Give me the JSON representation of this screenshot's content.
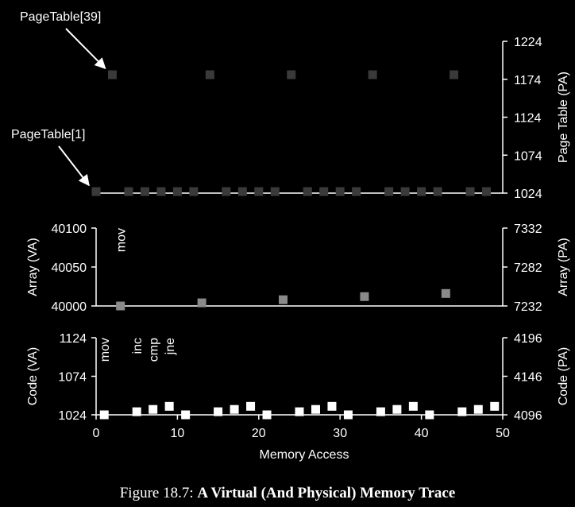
{
  "chart_data": {
    "type": "scatter",
    "xlabel": "Memory Access",
    "xlim": [
      0,
      50
    ],
    "xticks": [
      0,
      10,
      20,
      30,
      40,
      50
    ],
    "panels": [
      {
        "id": "page-table",
        "right_label": "Page Table (PA)",
        "right_ylim": [
          1024,
          1224
        ],
        "right_ticks": [
          1024,
          1074,
          1124,
          1174,
          1224
        ],
        "marker_color": "#3a3a3a",
        "points_x": [
          0,
          2,
          4,
          6,
          8,
          10,
          12,
          14,
          16,
          18,
          20,
          22,
          24,
          26,
          28,
          30,
          32,
          34,
          36,
          38,
          40,
          42,
          44,
          46,
          48
        ],
        "points_y": [
          1026,
          1180,
          1026,
          1026,
          1026,
          1026,
          1026,
          1180,
          1026,
          1026,
          1026,
          1026,
          1180,
          1026,
          1026,
          1026,
          1026,
          1180,
          1026,
          1026,
          1026,
          1026,
          1180,
          1026,
          1026
        ],
        "annotations": [
          {
            "text": "PageTable[39]",
            "x": 2,
            "y": 1180
          },
          {
            "text": "PageTable[1]",
            "x": 0,
            "y": 1026
          }
        ]
      },
      {
        "id": "array",
        "left_label": "Array (VA)",
        "left_ylim": [
          40000,
          40100
        ],
        "left_ticks": [
          40000,
          40050,
          40100
        ],
        "right_label": "Array (PA)",
        "right_ylim": [
          7232,
          7332
        ],
        "right_ticks": [
          7232,
          7282,
          7332
        ],
        "marker_color": "#8a8a8a",
        "points_x": [
          3,
          13,
          23,
          33,
          43
        ],
        "points_y": [
          40000,
          40004,
          40008,
          40012,
          40016
        ],
        "instructions": [
          {
            "text": "mov",
            "x": 3
          }
        ]
      },
      {
        "id": "code",
        "left_label": "Code (VA)",
        "left_ylim": [
          1024,
          1124
        ],
        "left_ticks": [
          1024,
          1074,
          1124
        ],
        "right_label": "Code (PA)",
        "right_ylim": [
          4096,
          4196
        ],
        "right_ticks": [
          4096,
          4146,
          4196
        ],
        "marker_color": "#ffffff",
        "points_x": [
          1,
          5,
          7,
          9,
          11,
          15,
          17,
          19,
          21,
          25,
          27,
          29,
          31,
          35,
          37,
          39,
          41,
          45,
          47,
          49
        ],
        "points_y": [
          1024,
          1028,
          1031,
          1035,
          1024,
          1028,
          1031,
          1035,
          1024,
          1028,
          1031,
          1035,
          1024,
          1028,
          1031,
          1035,
          1024,
          1028,
          1031,
          1035
        ],
        "instructions": [
          {
            "text": "mov",
            "x": 1
          },
          {
            "text": "inc",
            "x": 5
          },
          {
            "text": "cmp",
            "x": 7
          },
          {
            "text": "jne",
            "x": 9
          }
        ]
      }
    ]
  },
  "caption": {
    "prefix": "Figure 18.7:",
    "title": "A Virtual (And Physical) Memory Trace"
  }
}
